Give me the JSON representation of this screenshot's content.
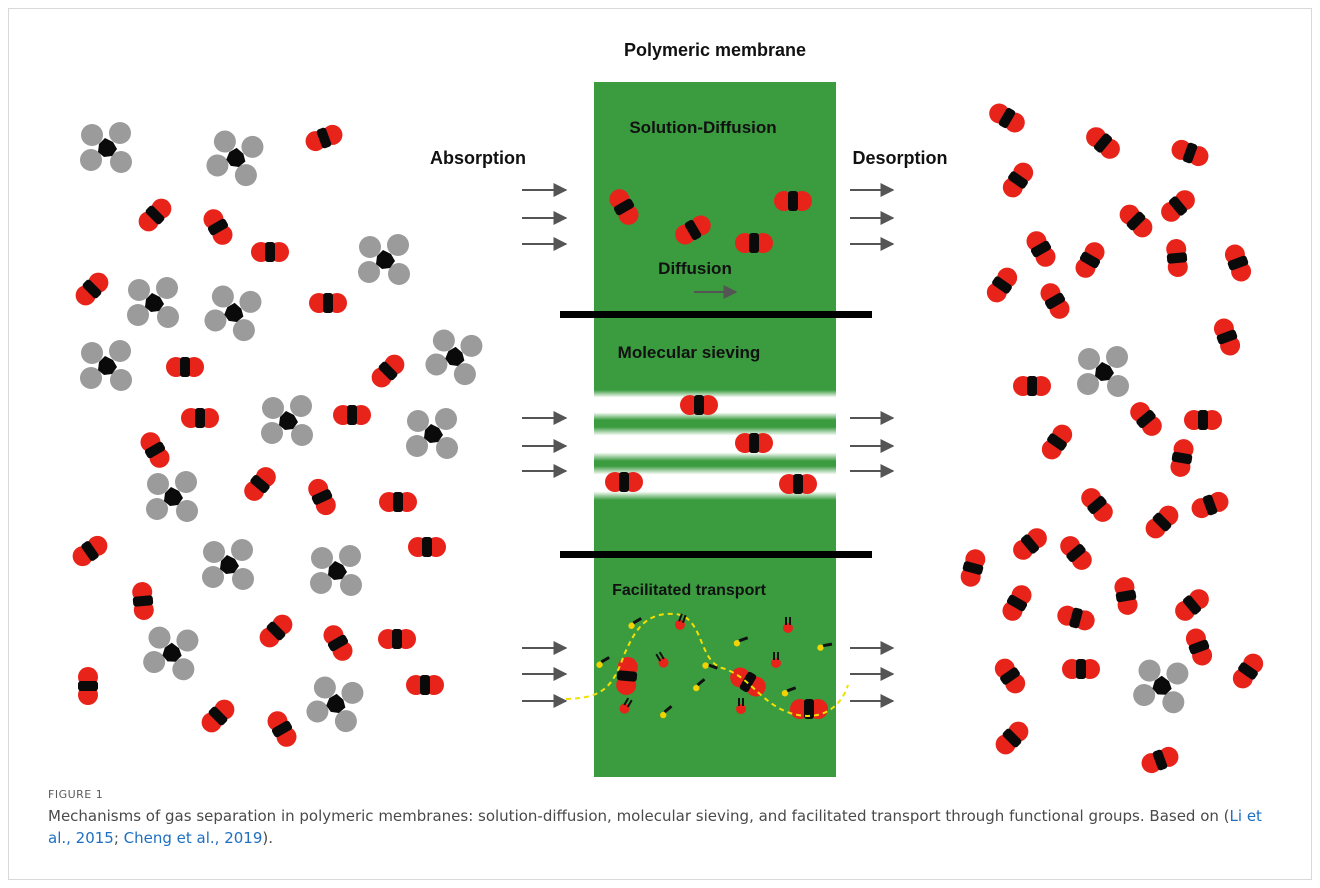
{
  "diagram": {
    "membrane_title": "Polymeric membrane",
    "left_label": "Absorption",
    "right_label": "Desorption",
    "sections": {
      "solution_diffusion": "Solution-Diffusion",
      "diffusion": "Diffusion",
      "molecular_sieving": "Molecular sieving",
      "facilitated_transport": "Facilitated transport"
    },
    "colors": {
      "membrane": "#3a9b3f",
      "co2_end": "#e8231a",
      "co2_band": "#0a0a0a",
      "ch4_lobe": "#9b9b9b",
      "ch4_core": "#0a0a0a",
      "arrow": "#555555",
      "carrier_path": "#f3e000",
      "divider": "#000000"
    },
    "molecule_types": [
      "co2-molecule",
      "ch4-molecule"
    ]
  },
  "caption": {
    "figure_label": "FIGURE 1",
    "text": "Mechanisms of gas separation in polymeric membranes: solution-diffusion, molecular sieving, and facilitated transport through functional groups. Based on (",
    "ref1": "Li et al., 2015",
    "sep": "; ",
    "ref2": "Cheng et al., 2019",
    "end": ")."
  }
}
